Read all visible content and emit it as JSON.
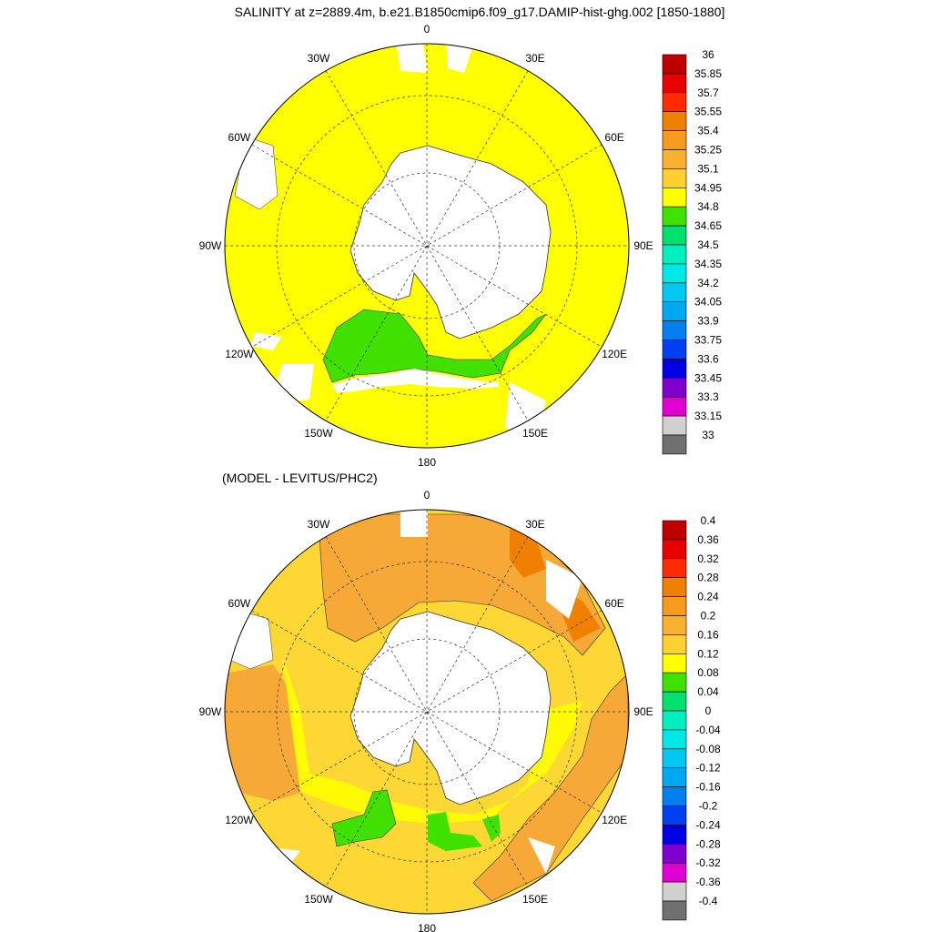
{
  "chart_data": [
    {
      "type": "heatmap",
      "projection": "polar-stereographic-south",
      "title": "SALINITY at z=2889.4m, b.e21.B1850cmip6.f09_g17.DAMIP-hist-ghg.002 [1850-1880]",
      "lon_labels": [
        "0",
        "30E",
        "60E",
        "90E",
        "120E",
        "150E",
        "180",
        "150W",
        "120W",
        "90W",
        "60W",
        "30W"
      ],
      "colorbar": {
        "labels": [
          "36",
          "35.85",
          "35.7",
          "35.55",
          "35.4",
          "35.25",
          "35.1",
          "34.95",
          "34.8",
          "34.65",
          "34.5",
          "34.35",
          "34.2",
          "34.05",
          "33.9",
          "33.75",
          "33.6",
          "33.45",
          "33.3",
          "33.15",
          "33"
        ],
        "colors": [
          "#c00000",
          "#e80000",
          "#ff2a00",
          "#f08000",
          "#f79a20",
          "#fbb030",
          "#ffd030",
          "#ffff00",
          "#40e000",
          "#00e070",
          "#00f0c0",
          "#00e8e8",
          "#00c8f0",
          "#00a8f0",
          "#0080f0",
          "#0040f0",
          "#0000e0",
          "#8000d0",
          "#e000d0",
          "#d0d0d0",
          "#707070"
        ]
      },
      "dominant_fill": "#ffff00",
      "secondary_fill": "#40e000"
    },
    {
      "type": "heatmap",
      "projection": "polar-stereographic-south",
      "title": "(MODEL - LEVITUS/PHC2)",
      "lon_labels": [
        "0",
        "30E",
        "60E",
        "90E",
        "120E",
        "150E",
        "180",
        "150W",
        "120W",
        "90W",
        "60W",
        "30W"
      ],
      "colorbar": {
        "labels": [
          "0.4",
          "0.36",
          "0.32",
          "0.28",
          "0.24",
          "0.2",
          "0.16",
          "0.12",
          "0.08",
          "0.04",
          "0",
          "-0.04",
          "-0.08",
          "-0.12",
          "-0.16",
          "-0.2",
          "-0.24",
          "-0.28",
          "-0.32",
          "-0.36",
          "-0.4"
        ],
        "colors": [
          "#c00000",
          "#e80000",
          "#ff2a00",
          "#f08000",
          "#f79a20",
          "#fbb030",
          "#ffd030",
          "#ffff00",
          "#40e000",
          "#00e070",
          "#00f0c0",
          "#00e8e8",
          "#00c8f0",
          "#00a8f0",
          "#0080f0",
          "#0040f0",
          "#0000e0",
          "#8000d0",
          "#e000d0",
          "#d0d0d0",
          "#707070"
        ]
      },
      "dominant_fill": "#f7a938",
      "secondary_fill": "#fdd835"
    }
  ]
}
